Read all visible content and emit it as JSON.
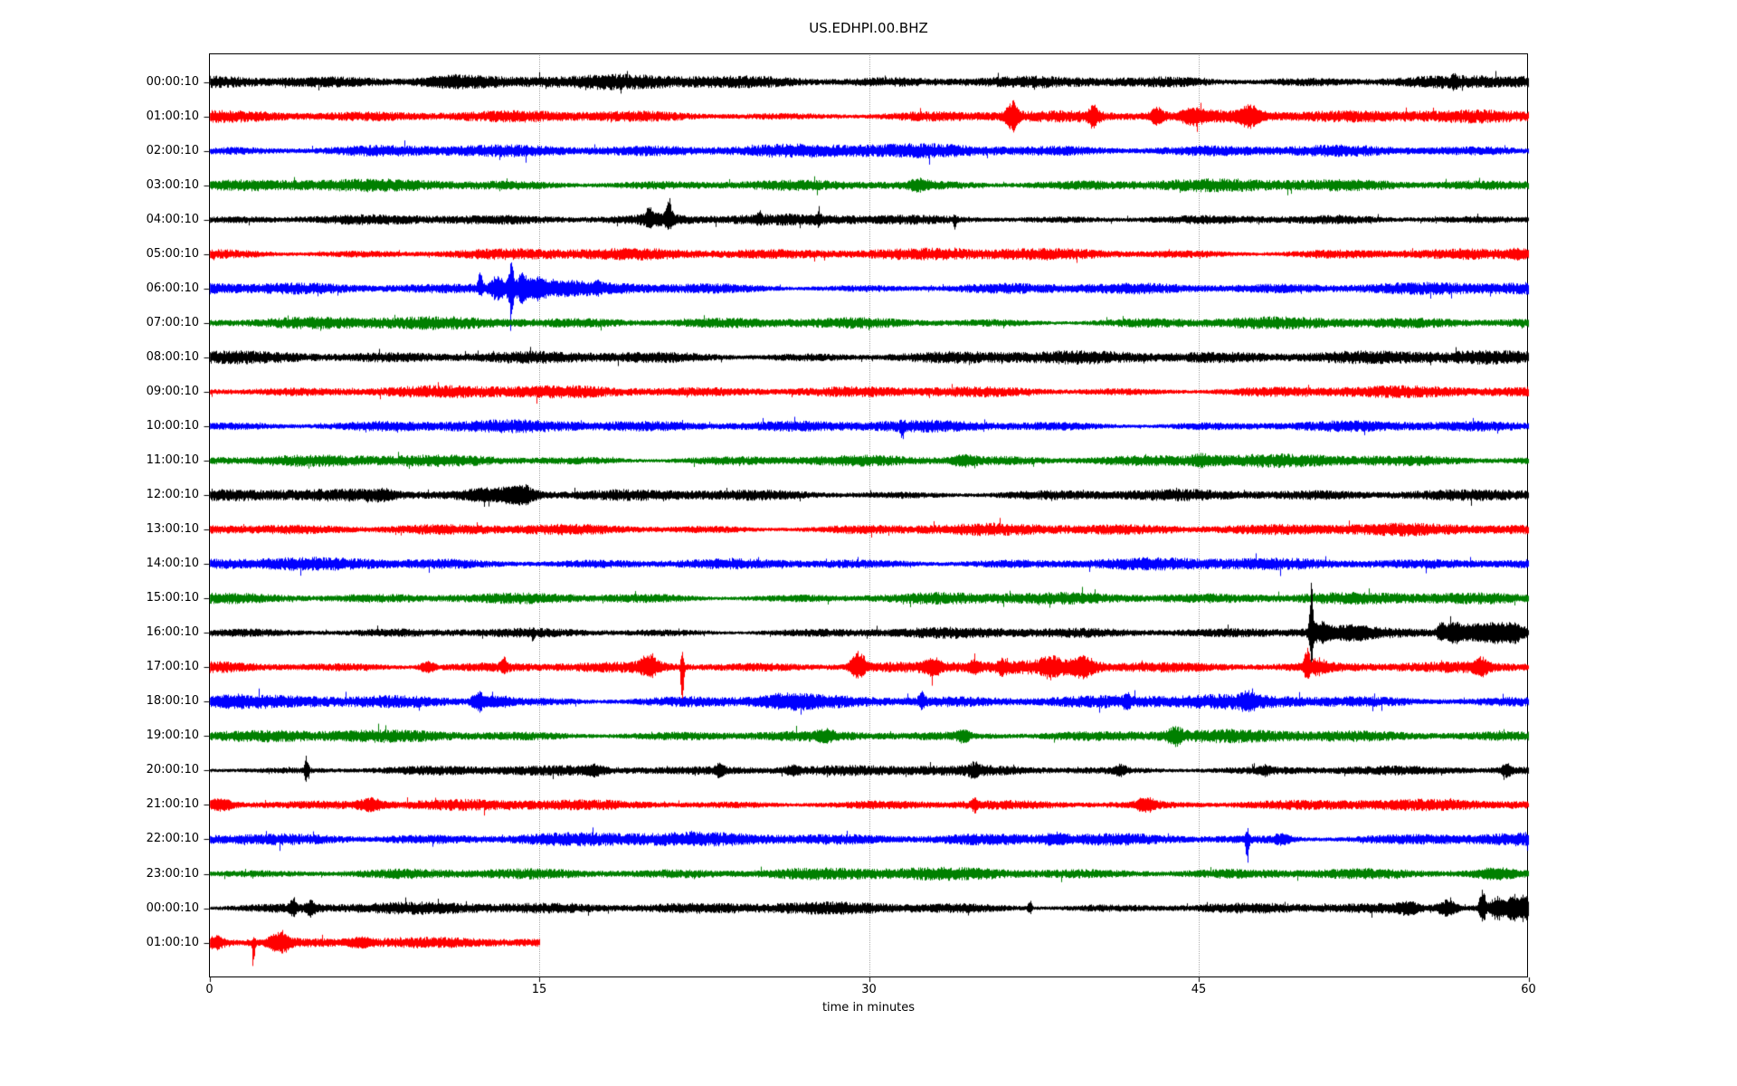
{
  "chart_data": {
    "type": "line",
    "title": "US.EDHPI.00.BHZ",
    "xlabel": "time in minutes",
    "x_ticks": [
      0,
      15,
      30,
      45,
      60
    ],
    "x_gridlines": [
      15,
      30,
      45
    ],
    "xlim": [
      0,
      60
    ],
    "grid": "vertical-dotted",
    "legend": "none",
    "trace_colors": {
      "black": "#000000",
      "red": "#ff0000",
      "blue": "#0000ff",
      "green": "#008000"
    },
    "description": "24-hour helicorder day plot, one trace per hour, colors cycling black/red/blue/green; events listed per row as center minute t, amplitude a (px), width w (min), asymmetry s (-1 down, +1 up)",
    "rows": [
      {
        "label": "00:00:10",
        "color": "black",
        "base_amp": 9,
        "end_min": 60,
        "events": [
          {
            "t": 10.8,
            "a": 6,
            "w": 1.0,
            "s": 0
          },
          {
            "t": 56.6,
            "a": 10,
            "w": 0.06,
            "s": 0.3
          }
        ]
      },
      {
        "label": "01:00:10",
        "color": "red",
        "base_amp": 8,
        "end_min": 60,
        "events": [
          {
            "t": 36.5,
            "a": 26,
            "w": 0.2,
            "s": 0
          },
          {
            "t": 40.2,
            "a": 16,
            "w": 0.18,
            "s": 0
          },
          {
            "t": 43.1,
            "a": 14,
            "w": 0.2,
            "s": 0
          },
          {
            "t": 44.7,
            "a": 10,
            "w": 0.3,
            "s": 0
          },
          {
            "t": 47.3,
            "a": 16,
            "w": 0.3,
            "s": 0
          },
          {
            "t": 46.5,
            "a": 6,
            "w": 1.5,
            "s": 0
          }
        ]
      },
      {
        "label": "02:00:10",
        "color": "blue",
        "base_amp": 9,
        "end_min": 60,
        "events": []
      },
      {
        "label": "03:00:10",
        "color": "green",
        "base_amp": 8,
        "end_min": 60,
        "events": [
          {
            "t": 32.3,
            "a": 8,
            "w": 0.3,
            "s": 0
          }
        ]
      },
      {
        "label": "04:00:10",
        "color": "black",
        "base_amp": 7,
        "end_min": 60,
        "events": [
          {
            "t": 20.0,
            "a": 14,
            "w": 0.1,
            "s": 0.4
          },
          {
            "t": 20.9,
            "a": 20,
            "w": 0.1,
            "s": 0.5
          },
          {
            "t": 20.5,
            "a": 6,
            "w": 0.7,
            "s": 0
          },
          {
            "t": 25.0,
            "a": 9,
            "w": 0.07,
            "s": 0.5
          },
          {
            "t": 27.7,
            "a": 6,
            "w": 0.1,
            "s": 0.3
          },
          {
            "t": 33.9,
            "a": 12,
            "w": 0.05,
            "s": -0.5
          }
        ]
      },
      {
        "label": "05:00:10",
        "color": "red",
        "base_amp": 8,
        "end_min": 60,
        "events": [
          {
            "t": 59.6,
            "a": 6,
            "w": 0.4,
            "s": 0
          }
        ]
      },
      {
        "label": "06:00:10",
        "color": "blue",
        "base_amp": 8,
        "end_min": 60,
        "events": [
          {
            "t": 12.3,
            "a": 18,
            "w": 0.08,
            "s": 0.5
          },
          {
            "t": 13.1,
            "a": 20,
            "w": 0.25,
            "s": 0
          },
          {
            "t": 13.7,
            "a": 50,
            "w": 0.1,
            "s": 0.05
          },
          {
            "t": 14.2,
            "a": 24,
            "w": 0.2,
            "s": 0
          },
          {
            "t": 14.9,
            "a": 14,
            "w": 0.3,
            "s": 0
          },
          {
            "t": 16.0,
            "a": 6,
            "w": 1.0,
            "s": 0
          },
          {
            "t": 17.6,
            "a": 8,
            "w": 0.08,
            "s": 0.3
          }
        ]
      },
      {
        "label": "07:00:10",
        "color": "green",
        "base_amp": 8,
        "end_min": 60,
        "events": []
      },
      {
        "label": "08:00:10",
        "color": "black",
        "base_amp": 9,
        "end_min": 60,
        "events": []
      },
      {
        "label": "09:00:10",
        "color": "red",
        "base_amp": 8,
        "end_min": 60,
        "events": []
      },
      {
        "label": "10:00:10",
        "color": "blue",
        "base_amp": 8,
        "end_min": 60,
        "events": [
          {
            "t": 31.5,
            "a": 12,
            "w": 0.06,
            "s": -0.6
          }
        ]
      },
      {
        "label": "11:00:10",
        "color": "green",
        "base_amp": 8,
        "end_min": 60,
        "events": [
          {
            "t": 34.3,
            "a": 6,
            "w": 0.4,
            "s": 0
          },
          {
            "t": 45.2,
            "a": 6,
            "w": 0.4,
            "s": 0
          }
        ]
      },
      {
        "label": "12:00:10",
        "color": "black",
        "base_amp": 8,
        "end_min": 60,
        "events": [
          {
            "t": 7.8,
            "a": 5,
            "w": 0.5,
            "s": 0
          },
          {
            "t": 13.0,
            "a": 7,
            "w": 1.0,
            "s": 0
          },
          {
            "t": 14.2,
            "a": 12,
            "w": 0.45,
            "s": 0
          }
        ]
      },
      {
        "label": "13:00:10",
        "color": "red",
        "base_amp": 8,
        "end_min": 60,
        "events": []
      },
      {
        "label": "14:00:10",
        "color": "blue",
        "base_amp": 8,
        "end_min": 60,
        "events": []
      },
      {
        "label": "15:00:10",
        "color": "green",
        "base_amp": 8,
        "end_min": 60,
        "events": []
      },
      {
        "label": "16:00:10",
        "color": "black",
        "base_amp": 7,
        "end_min": 60,
        "events": [
          {
            "t": 14.7,
            "a": 8,
            "w": 0.05,
            "s": -0.5
          },
          {
            "t": 50.1,
            "a": 80,
            "w": 0.06,
            "s": 0.3
          },
          {
            "t": 50.5,
            "a": 14,
            "w": 0.3,
            "s": 0
          },
          {
            "t": 51.8,
            "a": 8,
            "w": 0.8,
            "s": 0
          },
          {
            "t": 56.0,
            "a": 16,
            "w": 0.12,
            "s": 0.2
          },
          {
            "t": 56.6,
            "a": 18,
            "w": 0.25,
            "s": 0
          },
          {
            "t": 57.5,
            "a": 12,
            "w": 0.4,
            "s": 0
          },
          {
            "t": 58.5,
            "a": 14,
            "w": 0.5,
            "s": 0
          },
          {
            "t": 59.4,
            "a": 14,
            "w": 0.3,
            "s": 0
          }
        ]
      },
      {
        "label": "17:00:10",
        "color": "red",
        "base_amp": 8,
        "end_min": 60,
        "events": [
          {
            "t": 9.9,
            "a": 9,
            "w": 0.25,
            "s": 0
          },
          {
            "t": 13.4,
            "a": 11,
            "w": 0.12,
            "s": 0.3
          },
          {
            "t": 20.0,
            "a": 18,
            "w": 0.3,
            "s": 0.2
          },
          {
            "t": 21.5,
            "a": 75,
            "w": 0.05,
            "s": -0.5
          },
          {
            "t": 29.5,
            "a": 24,
            "w": 0.25,
            "s": 0.2
          },
          {
            "t": 32.9,
            "a": 12,
            "w": 0.25,
            "s": 0
          },
          {
            "t": 34.8,
            "a": 10,
            "w": 0.18,
            "s": 0
          },
          {
            "t": 36.1,
            "a": 9,
            "w": 0.18,
            "s": 0
          },
          {
            "t": 38.3,
            "a": 14,
            "w": 0.35,
            "s": 0
          },
          {
            "t": 39.7,
            "a": 16,
            "w": 0.35,
            "s": 0
          },
          {
            "t": 49.9,
            "a": 22,
            "w": 0.1,
            "s": 0.3
          },
          {
            "t": 50.4,
            "a": 10,
            "w": 0.35,
            "s": 0
          },
          {
            "t": 57.8,
            "a": 12,
            "w": 0.25,
            "s": 0
          }
        ]
      },
      {
        "label": "18:00:10",
        "color": "blue",
        "base_amp": 9,
        "end_min": 60,
        "events": [
          {
            "t": 0.8,
            "a": 5,
            "w": 0.8,
            "s": 0
          },
          {
            "t": 12.2,
            "a": 16,
            "w": 0.2,
            "s": 0
          },
          {
            "t": 13.1,
            "a": 7,
            "w": 0.5,
            "s": 0
          },
          {
            "t": 26.3,
            "a": 7,
            "w": 0.9,
            "s": 0
          },
          {
            "t": 32.4,
            "a": 12,
            "w": 0.1,
            "s": 0.2
          },
          {
            "t": 41.7,
            "a": 14,
            "w": 0.08,
            "s": 0
          },
          {
            "t": 47.2,
            "a": 9,
            "w": 0.25,
            "s": 0
          }
        ]
      },
      {
        "label": "19:00:10",
        "color": "green",
        "base_amp": 8,
        "end_min": 60,
        "events": [
          {
            "t": 28.0,
            "a": 7,
            "w": 0.25,
            "s": 0
          },
          {
            "t": 34.3,
            "a": 10,
            "w": 0.2,
            "s": 0
          },
          {
            "t": 43.9,
            "a": 12,
            "w": 0.25,
            "s": 0
          }
        ]
      },
      {
        "label": "20:00:10",
        "color": "black",
        "base_amp": 7,
        "end_min": 60,
        "events": [
          {
            "t": 4.4,
            "a": 22,
            "w": 0.07,
            "s": 0.1
          },
          {
            "t": 17.5,
            "a": 6,
            "w": 0.25,
            "s": 0
          },
          {
            "t": 23.2,
            "a": 9,
            "w": 0.15,
            "s": 0
          },
          {
            "t": 26.5,
            "a": 6,
            "w": 0.25,
            "s": 0
          },
          {
            "t": 34.8,
            "a": 10,
            "w": 0.15,
            "s": 0
          },
          {
            "t": 41.4,
            "a": 8,
            "w": 0.2,
            "s": 0
          },
          {
            "t": 48.0,
            "a": 6,
            "w": 0.2,
            "s": 0
          },
          {
            "t": 59.0,
            "a": 11,
            "w": 0.15,
            "s": 0
          }
        ]
      },
      {
        "label": "21:00:10",
        "color": "red",
        "base_amp": 7,
        "end_min": 60,
        "events": [
          {
            "t": 0.5,
            "a": 7,
            "w": 0.4,
            "s": 0
          },
          {
            "t": 7.3,
            "a": 10,
            "w": 0.35,
            "s": 0
          },
          {
            "t": 34.8,
            "a": 12,
            "w": 0.08,
            "s": 0
          },
          {
            "t": 42.6,
            "a": 10,
            "w": 0.35,
            "s": 0
          }
        ]
      },
      {
        "label": "22:00:10",
        "color": "blue",
        "base_amp": 9,
        "end_min": 60,
        "events": [
          {
            "t": 38.5,
            "a": 6,
            "w": 0.4,
            "s": 0
          },
          {
            "t": 47.2,
            "a": 30,
            "w": 0.06,
            "s": -0.45
          },
          {
            "t": 48.8,
            "a": 8,
            "w": 0.25,
            "s": 0
          }
        ]
      },
      {
        "label": "23:00:10",
        "color": "green",
        "base_amp": 8,
        "end_min": 60,
        "events": [
          {
            "t": 58.5,
            "a": 6,
            "w": 0.7,
            "s": 0
          }
        ]
      },
      {
        "label": "00:00:10",
        "color": "black",
        "base_amp": 8,
        "end_min": 60,
        "events": [
          {
            "t": 3.8,
            "a": 12,
            "w": 0.12,
            "s": 0.2
          },
          {
            "t": 4.6,
            "a": 10,
            "w": 0.15,
            "s": 0
          },
          {
            "t": 37.3,
            "a": 14,
            "w": 0.06,
            "s": 0.2
          },
          {
            "t": 54.5,
            "a": 7,
            "w": 0.4,
            "s": 0
          },
          {
            "t": 56.3,
            "a": 14,
            "w": 0.3,
            "s": 0
          },
          {
            "t": 57.9,
            "a": 34,
            "w": 0.1,
            "s": 0.15
          },
          {
            "t": 58.6,
            "a": 18,
            "w": 0.25,
            "s": 0
          },
          {
            "t": 59.3,
            "a": 22,
            "w": 0.18,
            "s": 0
          },
          {
            "t": 59.8,
            "a": 20,
            "w": 0.15,
            "s": 0
          }
        ]
      },
      {
        "label": "01:00:10",
        "color": "red",
        "base_amp": 8,
        "end_min": 15,
        "events": [
          {
            "t": 0.3,
            "a": 10,
            "w": 0.3,
            "s": 0
          },
          {
            "t": 2.0,
            "a": 24,
            "w": 0.05,
            "s": -0.7
          },
          {
            "t": 3.2,
            "a": 18,
            "w": 0.3,
            "s": 0
          },
          {
            "t": 6.8,
            "a": 6,
            "w": 0.4,
            "s": 0
          }
        ]
      }
    ]
  }
}
